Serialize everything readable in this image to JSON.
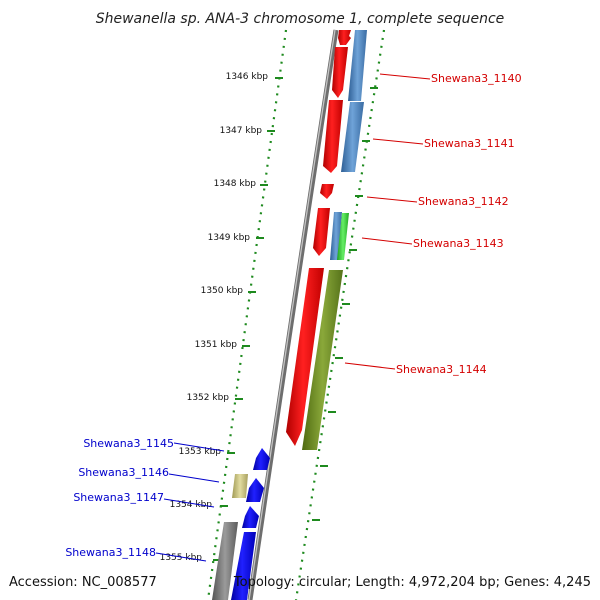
{
  "title": "Shewanella sp. ANA-3 chromosome 1, complete sequence",
  "footer": {
    "accession": "Accession: NC_008577",
    "summary": "Topology: circular; Length: 4,972,204 bp; Genes: 4,245"
  },
  "scale_labels": [
    "1346 kbp",
    "1347 kbp",
    "1348 kbp",
    "1349 kbp",
    "1350 kbp",
    "1351 kbp",
    "1352 kbp",
    "1353 kbp",
    "1354 kbp",
    "1355 kbp"
  ],
  "colors": {
    "forward_cds": "#ff0000",
    "reverse_cds": "#0000ff",
    "blue_gene": "#4a86c5",
    "green_gene": "#4ccf4c",
    "olive_gene": "#6b8a1e",
    "khaki_gene": "#c8c080",
    "backbone": "#888888",
    "tick_green": "#1e8a1e",
    "label_red": "#d40000",
    "label_blue": "#0000cc"
  },
  "genes_right": [
    {
      "name": "Shewana3_1140"
    },
    {
      "name": "Shewana3_1141"
    },
    {
      "name": "Shewana3_1142"
    },
    {
      "name": "Shewana3_1143"
    },
    {
      "name": "Shewana3_1144"
    }
  ],
  "genes_left": [
    {
      "name": "Shewana3_1145"
    },
    {
      "name": "Shewana3_1146"
    },
    {
      "name": "Shewana3_1147"
    },
    {
      "name": "Shewana3_1148"
    }
  ]
}
